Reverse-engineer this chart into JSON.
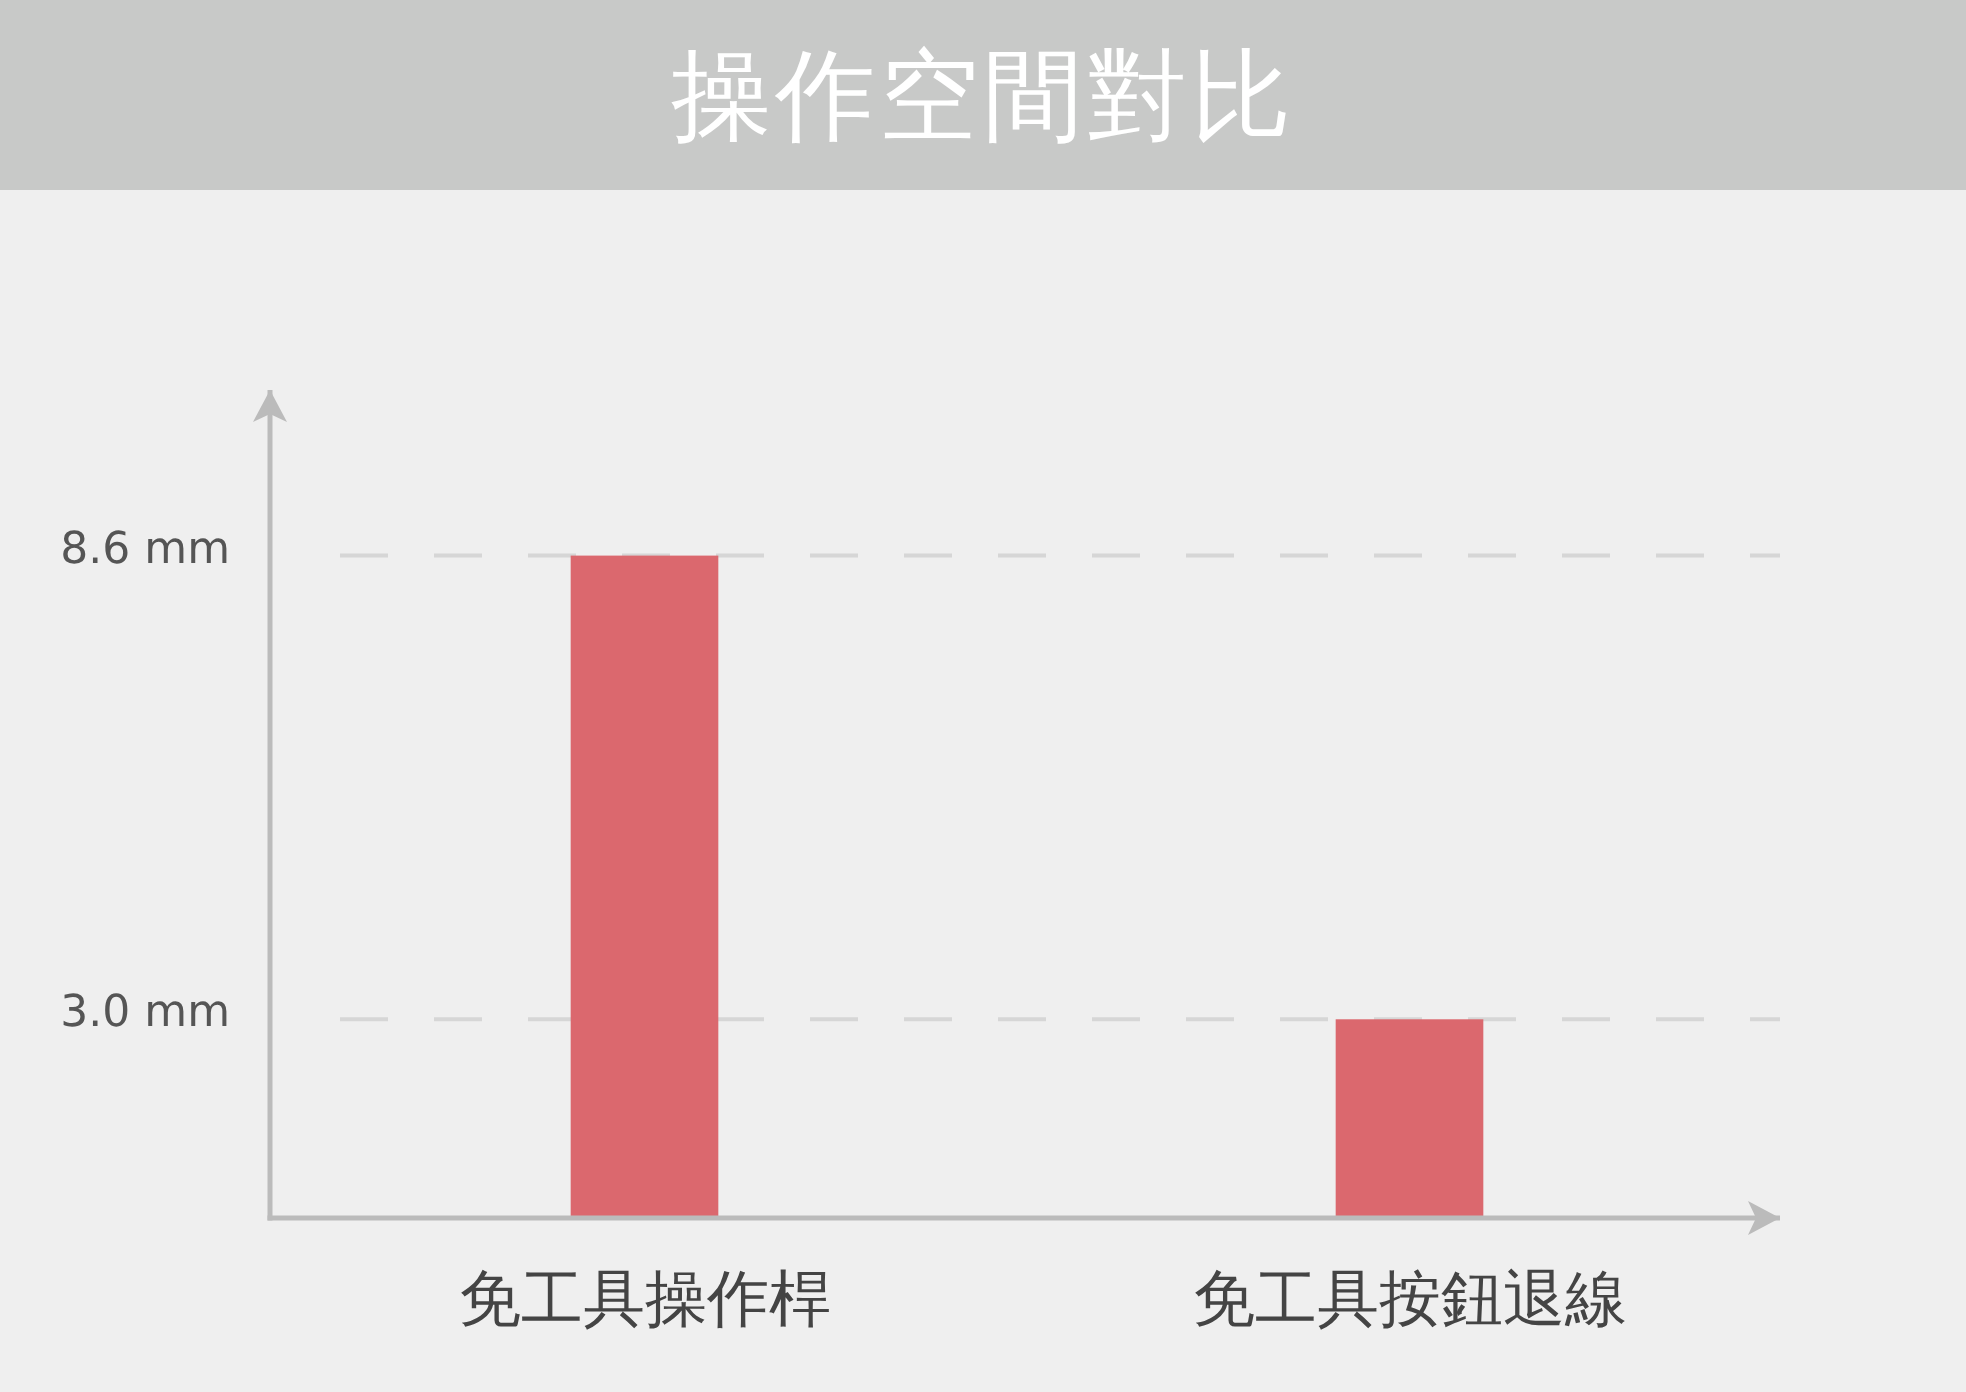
{
  "chart_data": {
    "type": "bar",
    "title": "操作空間對比",
    "categories": [
      "免工具操作桿",
      "免工具按鈕退線"
    ],
    "values": [
      8.6,
      3.0
    ],
    "color": "#db686e",
    "ylim": [
      0.6,
      10.6
    ],
    "yticks": [
      {
        "value": 8.6,
        "label": "8.6 mm"
      },
      {
        "value": 3.0,
        "label": "3.0 mm"
      }
    ],
    "grid": "y"
  }
}
